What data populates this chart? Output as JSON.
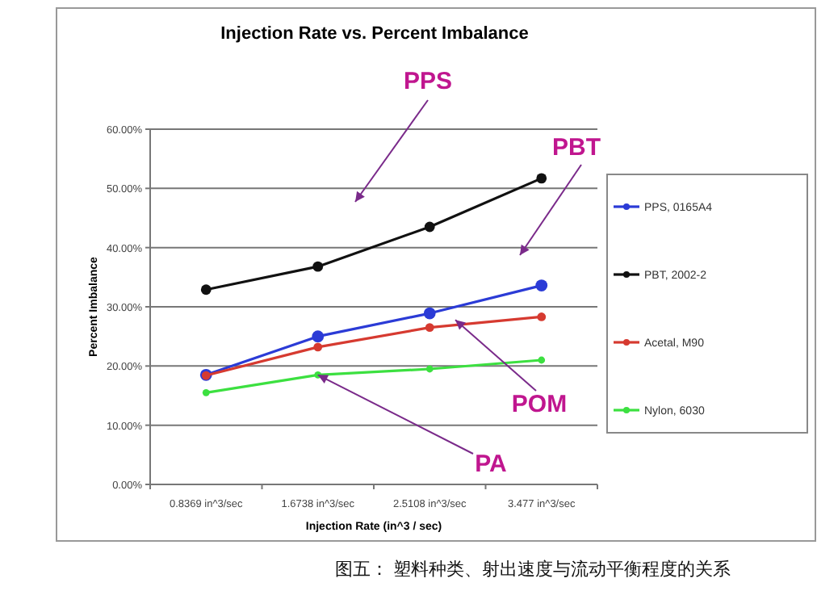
{
  "chart_data": {
    "type": "line",
    "title": "Injection Rate vs. Percent Imbalance",
    "xlabel": "Injection Rate (in^3 / sec)",
    "ylabel": "Percent Imbalance",
    "categories": [
      "0.8369 in^3/sec",
      "1.6738 in^3/sec",
      "2.5108 in^3/sec",
      "3.477 in^3/sec"
    ],
    "series": [
      {
        "name": "PPS, 0165A4",
        "color": "#2b3bd6",
        "values": [
          18.5,
          25.0,
          28.9,
          33.6
        ]
      },
      {
        "name": "PBT, 2002-2",
        "color": "#111111",
        "values": [
          32.9,
          36.8,
          43.5,
          51.7
        ]
      },
      {
        "name": "Acetal, M90",
        "color": "#d63a30",
        "values": [
          18.4,
          23.2,
          26.5,
          28.3
        ]
      },
      {
        "name": "Nylon, 6030",
        "color": "#3ce040",
        "values": [
          15.5,
          18.5,
          19.5,
          21.0
        ]
      }
    ],
    "ylim": [
      0,
      60
    ],
    "yticks": [
      {
        "value": 0,
        "label": "0.00%"
      },
      {
        "value": 10,
        "label": "10.00%"
      },
      {
        "value": 20,
        "label": "20.00%"
      },
      {
        "value": 30,
        "label": "30.00%"
      },
      {
        "value": 40,
        "label": "40.00%"
      },
      {
        "value": 50,
        "label": "50.00%"
      },
      {
        "value": 60,
        "label": "60.00%"
      }
    ],
    "grid": "y",
    "legend": "right",
    "marker": "circle",
    "line_style": "solid",
    "annotations": [
      "PPS",
      "PBT",
      {
        "text": "POM",
        "y": 27.8
      },
      {
        "text": "PA",
        "x": "1.6738 in^3/sec",
        "y": 18.5
      },
      "图五： 塑料种类、射出速度与流动平衡程度的关系"
    ]
  }
}
